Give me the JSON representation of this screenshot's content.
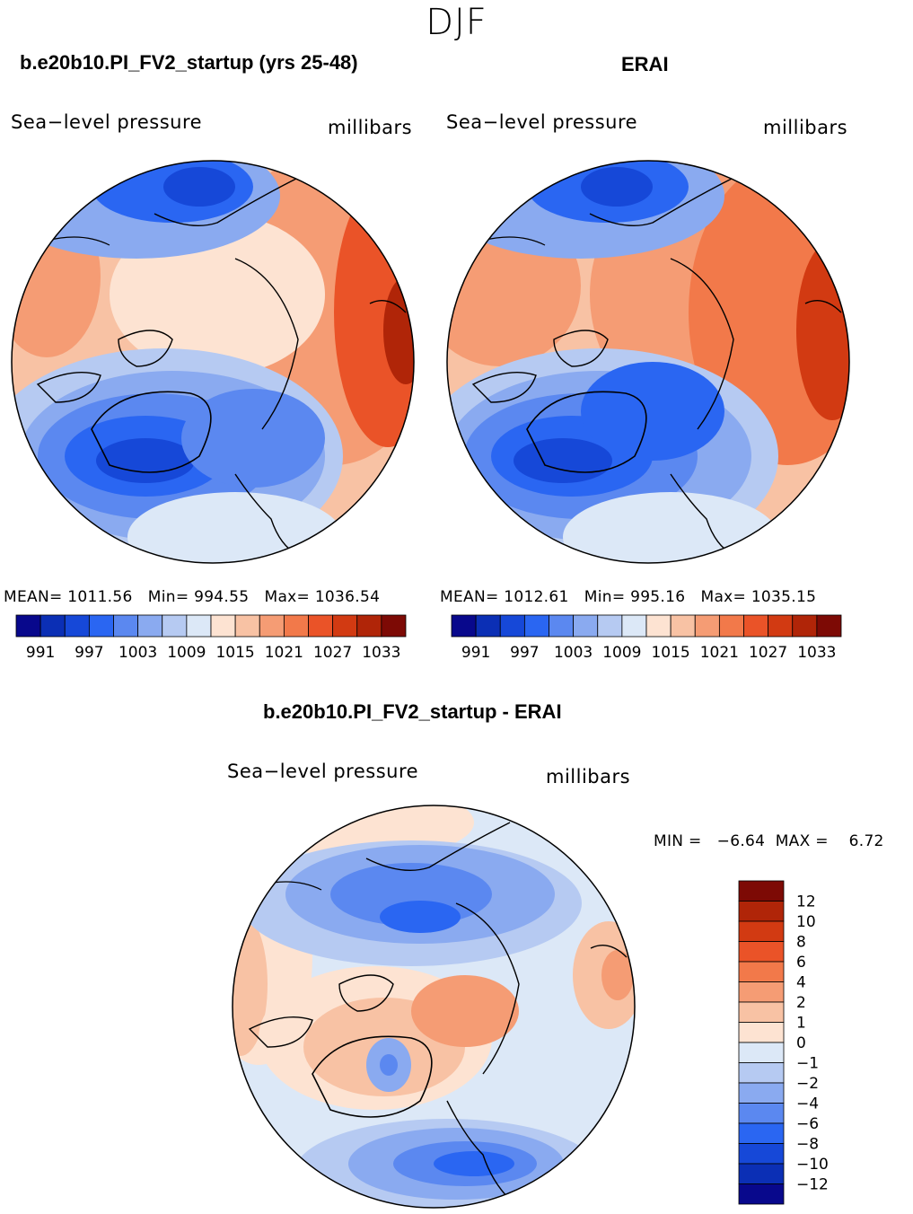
{
  "season": "DJF",
  "panels": [
    {
      "title": "b.e20b10.PI_FV2_startup (yrs 25-48)",
      "variable": "Sea−level pressure",
      "units": "millibars",
      "stats": {
        "mean": "1011.56",
        "min": "994.55",
        "max": "1036.54"
      }
    },
    {
      "title": "ERAI",
      "variable": "Sea−level pressure",
      "units": "millibars",
      "stats": {
        "mean": "1012.61",
        "min": "995.16",
        "max": "1035.15"
      }
    }
  ],
  "diff_panel": {
    "title": "b.e20b10.PI_FV2_startup - ERAI",
    "variable": "Sea−level pressure",
    "units": "millibars",
    "stats_text": {
      "min_label": "MIN =",
      "min": "−6.64",
      "max_label": "MAX =",
      "max": "6.72"
    }
  },
  "stat_labels": {
    "mean": "MEAN=",
    "min": "Min=",
    "max": "Max="
  },
  "colorbar_main": {
    "labels": [
      "991",
      "997",
      "1003",
      "1009",
      "1015",
      "1021",
      "1027",
      "1033"
    ],
    "colors": [
      "#08088c",
      "#0b2fb5",
      "#1648d8",
      "#2a66f2",
      "#5b88f0",
      "#8aaaf0",
      "#b6caf2",
      "#dce8f7",
      "#fde3d2",
      "#f8c2a4",
      "#f59c74",
      "#f2794a",
      "#ea5328",
      "#d23a12",
      "#b02508",
      "#7d0a05"
    ]
  },
  "colorbar_diff": {
    "labels": [
      "12",
      "10",
      "8",
      "6",
      "4",
      "2",
      "1",
      "0",
      "−1",
      "−2",
      "−4",
      "−6",
      "−8",
      "−10",
      "−12"
    ],
    "colors": [
      "#7d0a05",
      "#b02508",
      "#d23a12",
      "#ea5328",
      "#f2794a",
      "#f59c74",
      "#f8c2a4",
      "#fde3d2",
      "#dce8f7",
      "#b6caf2",
      "#8aaaf0",
      "#5b88f0",
      "#2a66f2",
      "#1648d8",
      "#0b2fb5",
      "#08088c"
    ]
  }
}
